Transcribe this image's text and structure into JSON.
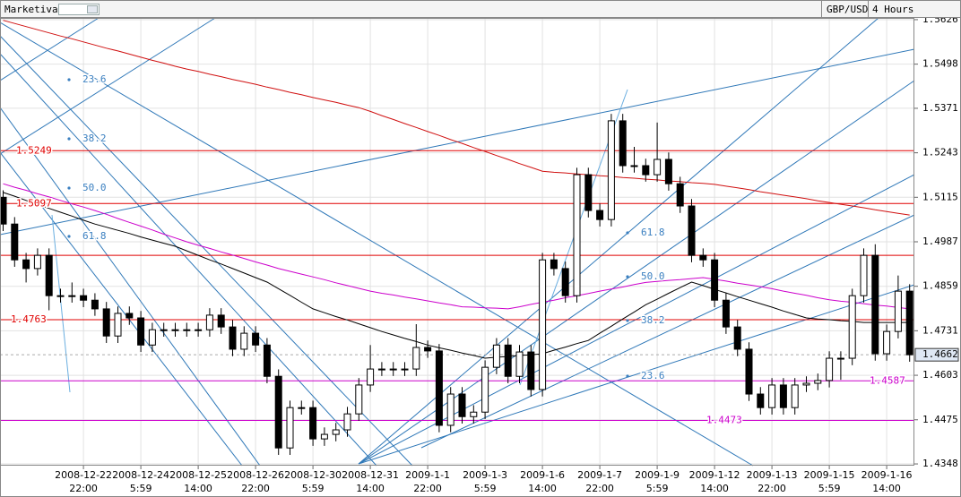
{
  "header": {
    "app": "Marketiva",
    "symbol": "GBP/USD",
    "timeframe": "4 Hours"
  },
  "chart_data": {
    "type": "candlestick",
    "categories": [
      null,
      null,
      null,
      null,
      null,
      null,
      null,
      "2008-12-22\n22:00",
      null,
      null,
      null,
      null,
      "2008-12-24\n5:59",
      null,
      null,
      null,
      null,
      "2008-12-25\n14:00",
      null,
      null,
      null,
      null,
      "2008-12-26\n22:00",
      null,
      null,
      null,
      null,
      "2008-12-30\n5:59",
      null,
      null,
      null,
      null,
      "2008-12-31\n14:00",
      null,
      null,
      null,
      null,
      "2009-1-1\n22:00",
      null,
      null,
      null,
      null,
      "2009-1-3\n5:59",
      null,
      null,
      null,
      null,
      "2009-1-6\n14:00",
      null,
      null,
      null,
      null,
      "2009-1-7\n22:00",
      null,
      null,
      null,
      null,
      "2009-1-9\n5:59",
      null,
      null,
      null,
      null,
      "2009-1-12\n14:00",
      null,
      null,
      null,
      null,
      "2009-1-13\n22:00",
      null,
      null,
      null,
      null,
      "2009-1-15\n5:59",
      null,
      null,
      null,
      null,
      "2009-1-16\n14:00",
      null,
      null
    ],
    "open": [
      1.5115,
      1.5038,
      1.4935,
      1.491,
      1.4948,
      1.4832,
      1.4832,
      1.4832,
      1.4819,
      1.4794,
      1.4716,
      1.4781,
      1.4768,
      1.469,
      1.4734,
      1.4734,
      1.4734,
      1.4734,
      1.4734,
      1.4776,
      1.4742,
      1.4678,
      1.4724,
      1.469,
      1.46,
      1.4394,
      1.451,
      1.451,
      1.442,
      1.4433,
      1.4446,
      1.4492,
      1.4575,
      1.4621,
      1.4621,
      1.4621,
      1.4621,
      1.4683,
      1.4673,
      1.4459,
      1.4549,
      1.4484,
      1.4497,
      1.4626,
      1.469,
      1.46,
      1.467,
      1.4562,
      1.4935,
      1.491,
      1.4832,
      1.518,
      1.5077,
      1.5051,
      1.5335,
      1.5206,
      1.5206,
      1.518,
      1.5224,
      1.5154,
      1.509,
      1.4948,
      1.4935,
      1.4819,
      1.4742,
      1.4678,
      1.4549,
      1.451,
      1.4575,
      1.451,
      1.4575,
      1.458,
      1.4588,
      1.4652,
      1.4652,
      1.4832,
      1.4948,
      1.4665,
      1.4729,
      1.4845
    ],
    "high": [
      1.5135,
      1.5058,
      1.4955,
      1.4968,
      1.4968,
      1.4852,
      1.487,
      1.4852,
      1.4839,
      1.4814,
      1.4801,
      1.4801,
      1.4788,
      1.4754,
      1.4754,
      1.4754,
      1.4754,
      1.4754,
      1.4796,
      1.4796,
      1.4762,
      1.4744,
      1.4744,
      1.471,
      1.462,
      1.453,
      1.453,
      1.453,
      1.4453,
      1.4466,
      1.4512,
      1.4595,
      1.469,
      1.4641,
      1.4641,
      1.4641,
      1.475,
      1.4703,
      1.4693,
      1.4569,
      1.4569,
      1.4517,
      1.4646,
      1.471,
      1.471,
      1.469,
      1.469,
      1.4955,
      1.4955,
      1.493,
      1.52,
      1.52,
      1.5097,
      1.5355,
      1.5355,
      1.526,
      1.5226,
      1.533,
      1.5244,
      1.5174,
      1.511,
      1.4968,
      1.4955,
      1.4839,
      1.4762,
      1.4698,
      1.4569,
      1.4595,
      1.4595,
      1.4595,
      1.46,
      1.4608,
      1.4672,
      1.4672,
      1.4852,
      1.4968,
      1.498,
      1.4749,
      1.489,
      1.4865
    ],
    "low": [
      1.5018,
      1.4915,
      1.487,
      1.489,
      1.479,
      1.4812,
      1.4812,
      1.4799,
      1.4774,
      1.4696,
      1.4696,
      1.4748,
      1.467,
      1.467,
      1.4714,
      1.4714,
      1.4714,
      1.4714,
      1.4714,
      1.4722,
      1.4658,
      1.4658,
      1.467,
      1.458,
      1.4374,
      1.4374,
      1.449,
      1.44,
      1.44,
      1.4413,
      1.4426,
      1.4472,
      1.4555,
      1.4601,
      1.4601,
      1.4601,
      1.4601,
      1.4653,
      1.4439,
      1.4439,
      1.4464,
      1.4464,
      1.4477,
      1.4606,
      1.458,
      1.458,
      1.4542,
      1.4542,
      1.489,
      1.4812,
      1.4812,
      1.5057,
      1.5031,
      1.5031,
      1.5186,
      1.5186,
      1.516,
      1.516,
      1.5134,
      1.507,
      1.4928,
      1.4915,
      1.4799,
      1.4722,
      1.4658,
      1.4529,
      1.449,
      1.449,
      1.449,
      1.449,
      1.4555,
      1.456,
      1.4568,
      1.459,
      1.4632,
      1.4812,
      1.4645,
      1.4645,
      1.4709,
      1.4642
    ],
    "close": [
      1.5038,
      1.4935,
      1.491,
      1.4948,
      1.4832,
      1.4832,
      1.4832,
      1.4819,
      1.4794,
      1.4716,
      1.4781,
      1.4768,
      1.469,
      1.4734,
      1.4734,
      1.4734,
      1.4734,
      1.4734,
      1.4776,
      1.4742,
      1.4678,
      1.4724,
      1.469,
      1.46,
      1.4394,
      1.451,
      1.451,
      1.442,
      1.4433,
      1.4446,
      1.4492,
      1.4575,
      1.4621,
      1.4621,
      1.4621,
      1.4621,
      1.4683,
      1.4673,
      1.4459,
      1.4549,
      1.4484,
      1.4497,
      1.4626,
      1.469,
      1.46,
      1.467,
      1.4562,
      1.4935,
      1.491,
      1.4832,
      1.518,
      1.5077,
      1.5051,
      1.5335,
      1.5206,
      1.5206,
      1.518,
      1.5224,
      1.5154,
      1.509,
      1.4948,
      1.4935,
      1.4819,
      1.4742,
      1.4678,
      1.4549,
      1.451,
      1.4575,
      1.451,
      1.4575,
      1.458,
      1.4588,
      1.4652,
      1.4652,
      1.4832,
      1.4948,
      1.4665,
      1.4729,
      1.4845,
      1.4662
    ],
    "up_color": "#ffffff",
    "down_color": "#000000",
    "series": [
      {
        "color": "#d01010",
        "values": [
          1.5624,
          1.5615,
          1.5606,
          1.5597,
          1.5588,
          1.5579,
          1.5571,
          1.5562,
          1.5553,
          1.5544,
          1.5536,
          1.5527,
          1.5518,
          1.5509,
          1.5501,
          1.5492,
          1.5484,
          1.5477,
          1.5469,
          1.5462,
          1.5454,
          1.5447,
          1.544,
          1.5432,
          1.5425,
          1.5417,
          1.541,
          1.5402,
          1.5395,
          1.5388,
          1.538,
          1.5373,
          1.5362,
          1.535,
          1.5339,
          1.5327,
          1.5316,
          1.5304,
          1.5293,
          1.5281,
          1.527,
          1.5258,
          1.5247,
          1.5235,
          1.5224,
          1.5212,
          1.5201,
          1.519,
          1.5187,
          1.5185,
          1.5182,
          1.518,
          1.5177,
          1.5175,
          1.5172,
          1.517,
          1.5167,
          1.5165,
          1.5162,
          1.516,
          1.5157,
          1.5155,
          1.5152,
          1.5147,
          1.5142,
          1.5137,
          1.5131,
          1.5126,
          1.5121,
          1.5116,
          1.5111,
          1.5105,
          1.51,
          1.5095,
          1.509,
          1.5085,
          1.5079,
          1.5074,
          1.5069,
          1.5064
        ]
      },
      {
        "color": "#cc00cc",
        "values": [
          1.5154,
          1.5144,
          1.5135,
          1.5125,
          1.5116,
          1.5106,
          1.5096,
          1.5087,
          1.5077,
          1.5066,
          1.5054,
          1.5043,
          1.5032,
          1.5021,
          1.5009,
          1.4998,
          1.4987,
          1.4977,
          1.4968,
          1.4958,
          1.4949,
          1.4939,
          1.4929,
          1.492,
          1.491,
          1.4902,
          1.4894,
          1.4886,
          1.4878,
          1.4869,
          1.4861,
          1.4853,
          1.4845,
          1.4839,
          1.4834,
          1.4828,
          1.4823,
          1.4817,
          1.4811,
          1.4806,
          1.48,
          1.4799,
          1.4797,
          1.4796,
          1.4794,
          1.48,
          1.4807,
          1.4813,
          1.4819,
          1.4826,
          1.4832,
          1.4838,
          1.4845,
          1.4851,
          1.4857,
          1.4864,
          1.487,
          1.4873,
          1.4876,
          1.4878,
          1.4881,
          1.4884,
          1.4879,
          1.4874,
          1.4868,
          1.4863,
          1.4858,
          1.4852,
          1.4845,
          1.4839,
          1.4833,
          1.4826,
          1.482,
          1.4816,
          1.4813,
          1.4809,
          1.4805,
          1.4802,
          1.4798,
          1.4794
        ]
      },
      {
        "color": "#000000",
        "values": [
          1.5129,
          1.5118,
          1.5106,
          1.5095,
          1.5083,
          1.5072,
          1.5061,
          1.5049,
          1.5038,
          1.5029,
          1.502,
          1.5011,
          1.5001,
          1.4992,
          1.4983,
          1.4974,
          1.4961,
          1.4948,
          1.4935,
          1.4923,
          1.491,
          1.4897,
          1.4884,
          1.4871,
          1.4852,
          1.4833,
          1.4813,
          1.4794,
          1.4783,
          1.4772,
          1.4762,
          1.4751,
          1.474,
          1.4729,
          1.4719,
          1.4709,
          1.47,
          1.469,
          1.4682,
          1.4675,
          1.4667,
          1.466,
          1.4652,
          1.4655,
          1.4657,
          1.466,
          1.4662,
          1.4665,
          1.4675,
          1.4684,
          1.4694,
          1.4703,
          1.4724,
          1.4744,
          1.4765,
          1.4785,
          1.4806,
          1.4822,
          1.4839,
          1.4855,
          1.4871,
          1.4861,
          1.485,
          1.484,
          1.4829,
          1.4819,
          1.4809,
          1.4799,
          1.4788,
          1.4778,
          1.4768,
          1.4765,
          1.4763,
          1.476,
          1.4758,
          1.4755,
          1.4755,
          1.4755,
          1.4755,
          1.4755
        ]
      }
    ],
    "ylim": [
      1.4343,
      1.5631
    ],
    "yticks": [
      1.5626,
      1.5498,
      1.5371,
      1.5243,
      1.5115,
      1.4987,
      1.4859,
      1.4731,
      1.4603,
      1.4475,
      1.4348
    ],
    "grid": true,
    "red_levels": [
      1.5249,
      1.5097,
      1.4763
    ],
    "red_lines": [
      1.4948
    ],
    "level_color": "#e00000",
    "magenta_levels": [
      1.4587,
      1.4473
    ],
    "magenta_color": "#cc00cc",
    "fib_labels": [
      "23.6",
      "38.2",
      "50.0",
      "61.8"
    ],
    "fib_color": "#3a7fc0"
  }
}
